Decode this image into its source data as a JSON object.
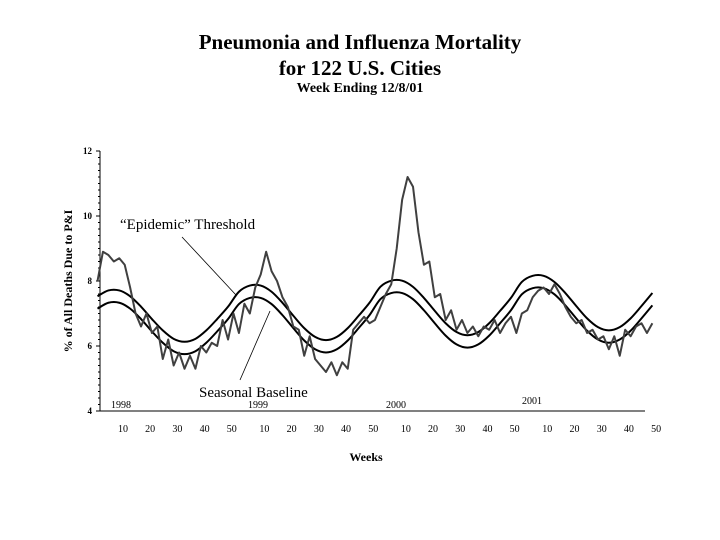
{
  "title": "Pneumonia and Influenza Mortality",
  "subtitle": "for 122 U.S. Cities",
  "subtitle2": "Week Ending 12/8/01",
  "chart_data": {
    "type": "line",
    "xlabel": "Weeks",
    "ylabel": "% of All Deaths Due to P&I",
    "ylim": [
      4,
      12
    ],
    "yticks": [
      "4",
      "6",
      "8",
      "10",
      "12"
    ],
    "xtick_labels": [
      "10",
      "20",
      "30",
      "40",
      "50",
      "10",
      "20",
      "30",
      "40",
      "50",
      "10",
      "20",
      "30",
      "40",
      "50",
      "10",
      "20",
      "30",
      "40",
      "50"
    ],
    "xtick_weeks": [
      10,
      20,
      30,
      40,
      50
    ],
    "years": [
      "1998",
      "1999",
      "2000",
      "2001"
    ],
    "grid": false,
    "annotations": {
      "threshold": "“Epidemic” Threshold",
      "baseline": "Seasonal Baseline"
    },
    "colors": {
      "observed": "#404040",
      "baseline": "#000000",
      "threshold": "#000000"
    },
    "observed": [
      {
        "year": 1998,
        "weeks": [
          1,
          3,
          5,
          7,
          9,
          11,
          13,
          15,
          17,
          19,
          21,
          23,
          25,
          27,
          29,
          31,
          33,
          35,
          37,
          39,
          41,
          43,
          45,
          47,
          49,
          51
        ],
        "values": [
          8.0,
          8.9,
          8.8,
          8.6,
          8.7,
          8.5,
          7.8,
          7.0,
          6.6,
          7.0,
          6.4,
          6.6,
          5.6,
          6.2,
          5.4,
          5.8,
          5.3,
          5.7,
          5.3,
          6.0,
          5.8,
          6.1,
          6.0,
          6.8,
          6.2,
          7.0
        ]
      },
      {
        "year": 1999,
        "weeks": [
          1,
          3,
          5,
          7,
          9,
          11,
          13,
          15,
          17,
          19,
          21,
          23,
          25,
          27,
          29,
          31,
          33,
          35,
          37,
          39,
          41,
          43,
          45,
          47,
          49,
          51
        ],
        "values": [
          6.4,
          7.3,
          7.0,
          7.8,
          8.2,
          8.9,
          8.3,
          8.0,
          7.5,
          7.2,
          6.6,
          6.5,
          5.7,
          6.3,
          5.6,
          5.4,
          5.2,
          5.5,
          5.1,
          5.5,
          5.3,
          6.5,
          6.7,
          6.9,
          6.7,
          6.8
        ]
      },
      {
        "year": 2000,
        "weeks": [
          1,
          3,
          5,
          7,
          9,
          11,
          13,
          15,
          17,
          19,
          21,
          23,
          25,
          27,
          29,
          31,
          33,
          35,
          37,
          39,
          41,
          43,
          45,
          47,
          49,
          51
        ],
        "values": [
          7.2,
          7.6,
          7.9,
          9.0,
          10.5,
          11.2,
          10.9,
          9.5,
          8.5,
          8.6,
          7.5,
          7.6,
          6.8,
          7.1,
          6.5,
          6.8,
          6.4,
          6.6,
          6.3,
          6.6,
          6.5,
          6.8,
          6.4,
          6.7,
          6.9,
          6.4
        ]
      },
      {
        "year": 2001,
        "weeks": [
          1,
          3,
          5,
          7,
          9,
          11,
          13,
          15,
          17,
          19,
          21,
          23,
          25,
          27,
          29,
          31,
          33,
          35,
          37,
          39,
          41,
          43,
          45,
          47,
          49
        ],
        "values": [
          7.0,
          7.1,
          7.5,
          7.7,
          7.8,
          7.6,
          7.9,
          7.6,
          7.2,
          6.9,
          6.7,
          6.8,
          6.4,
          6.5,
          6.2,
          6.3,
          5.9,
          6.3,
          5.7,
          6.5,
          6.3,
          6.6,
          6.7,
          6.4,
          6.7
        ]
      }
    ],
    "baseline": [
      {
        "year": 1998,
        "weeks": [
          1,
          5,
          9,
          13,
          17,
          21,
          25,
          29,
          33,
          37,
          41,
          45,
          49
        ],
        "values": [
          7.15,
          7.33,
          7.33,
          7.15,
          6.83,
          6.45,
          6.1,
          5.84,
          5.75,
          5.84,
          6.1,
          6.45,
          6.83
        ]
      },
      {
        "year": 1999,
        "weeks": [
          1,
          5,
          9,
          13,
          17,
          21,
          25,
          29,
          33,
          37,
          41,
          45,
          49
        ],
        "values": [
          7.29,
          7.48,
          7.48,
          7.29,
          6.95,
          6.55,
          6.17,
          5.9,
          5.8,
          5.9,
          6.17,
          6.55,
          6.95
        ]
      },
      {
        "year": 2000,
        "weeks": [
          1,
          5,
          9,
          13,
          17,
          21,
          25,
          29,
          33,
          37,
          41,
          45,
          49
        ],
        "values": [
          7.44,
          7.63,
          7.63,
          7.44,
          7.1,
          6.7,
          6.32,
          6.05,
          5.95,
          6.05,
          6.32,
          6.7,
          7.1
        ]
      },
      {
        "year": 2001,
        "weeks": [
          1,
          5,
          9,
          13,
          17,
          21,
          25,
          29,
          33,
          37,
          41,
          45,
          49
        ],
        "values": [
          7.59,
          7.78,
          7.78,
          7.59,
          7.25,
          6.85,
          6.47,
          6.2,
          6.1,
          6.2,
          6.47,
          6.85,
          7.25
        ]
      }
    ],
    "threshold": [
      {
        "year": 1998,
        "weeks": [
          1,
          5,
          9,
          13,
          17,
          21,
          25,
          29,
          33,
          37,
          41,
          45,
          49
        ],
        "values": [
          7.53,
          7.71,
          7.71,
          7.53,
          7.21,
          6.83,
          6.48,
          6.22,
          6.13,
          6.22,
          6.48,
          6.83,
          7.21
        ]
      },
      {
        "year": 1999,
        "weeks": [
          1,
          5,
          9,
          13,
          17,
          21,
          25,
          29,
          33,
          37,
          41,
          45,
          49
        ],
        "values": [
          7.67,
          7.86,
          7.86,
          7.67,
          7.33,
          6.93,
          6.55,
          6.28,
          6.18,
          6.28,
          6.55,
          6.93,
          7.33
        ]
      },
      {
        "year": 2000,
        "weeks": [
          1,
          5,
          9,
          13,
          17,
          21,
          25,
          29,
          33,
          37,
          41,
          45,
          49
        ],
        "values": [
          7.82,
          8.01,
          8.01,
          7.82,
          7.48,
          7.08,
          6.7,
          6.43,
          6.33,
          6.43,
          6.7,
          7.08,
          7.48
        ]
      },
      {
        "year": 2001,
        "weeks": [
          1,
          5,
          9,
          13,
          17,
          21,
          25,
          29,
          33,
          37,
          41,
          45,
          49
        ],
        "values": [
          7.97,
          8.16,
          8.16,
          7.97,
          7.63,
          7.23,
          6.85,
          6.58,
          6.48,
          6.58,
          6.85,
          7.23,
          7.63
        ]
      }
    ]
  }
}
